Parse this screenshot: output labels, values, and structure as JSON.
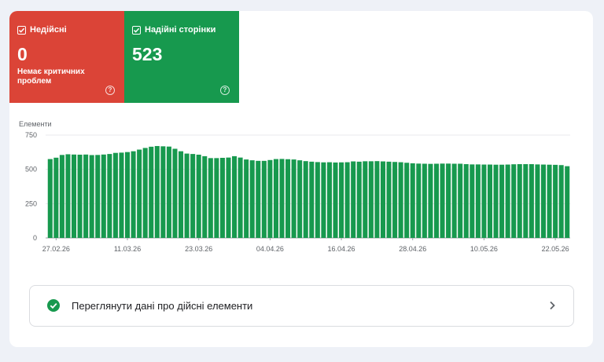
{
  "tiles": {
    "invalid": {
      "label": "Недійсні",
      "count": "0",
      "subtitle": "Немає критичних проблем",
      "color": "#db4437"
    },
    "valid": {
      "label": "Надійні сторінки",
      "count": "523",
      "color": "#17994e"
    }
  },
  "action": {
    "label": "Переглянути дані про дійсні елементи",
    "icon": "check-circle-icon",
    "chevron": "chevron-right-icon"
  },
  "chart_data": {
    "type": "bar",
    "ylabel": "Елементи",
    "ylim": [
      0,
      750
    ],
    "yticks": [
      0,
      250,
      500,
      750
    ],
    "xtick_labels": [
      "27.02.26",
      "11.03.26",
      "23.03.26",
      "04.04.26",
      "16.04.26",
      "28.04.26",
      "10.05.26",
      "22.05.26"
    ],
    "color": "#17994e",
    "grid": true,
    "values": [
      575,
      585,
      605,
      610,
      608,
      607,
      608,
      604,
      605,
      608,
      612,
      620,
      622,
      626,
      632,
      644,
      656,
      665,
      670,
      668,
      666,
      650,
      632,
      615,
      612,
      607,
      596,
      582,
      582,
      584,
      586,
      596,
      586,
      572,
      566,
      562,
      562,
      568,
      575,
      576,
      574,
      572,
      566,
      560,
      556,
      553,
      551,
      552,
      550,
      551,
      552,
      558,
      556,
      559,
      559,
      560,
      558,
      556,
      554,
      552,
      548,
      544,
      542,
      541,
      540,
      541,
      542,
      542,
      541,
      541,
      538,
      536,
      536,
      535,
      535,
      534,
      534,
      535,
      537,
      538,
      538,
      538,
      536,
      535,
      534,
      533,
      531,
      523
    ]
  }
}
